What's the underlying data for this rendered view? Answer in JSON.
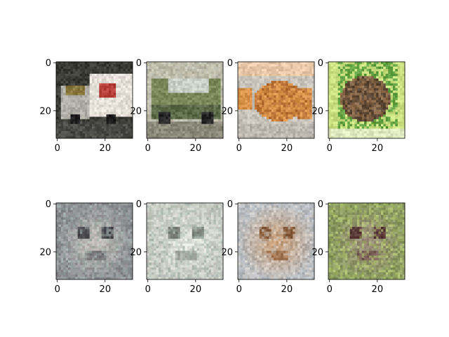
{
  "figure": {
    "background": "#ffffff",
    "grid": false,
    "layout": "2 rows x 4 columns of image panels",
    "x_ticks": [
      0,
      20
    ],
    "y_ticks": [
      0,
      20
    ],
    "panels": [
      {
        "content": "truck",
        "palette": {
          "bg": "#3a3b35",
          "main": "#e4e0d8",
          "accent": "#b8403a",
          "detail": "#8a7a40",
          "ground": "#4a4a46"
        }
      },
      {
        "content": "car",
        "palette": {
          "bg": "#b8b4a0",
          "main": "#7a8a5a",
          "accent": "#5a6a48",
          "detail": "#c8d0c8",
          "ground": "#8a8878"
        }
      },
      {
        "content": "cat",
        "palette": {
          "bg": "#c8c4bc",
          "main": "#d8924a",
          "accent": "#b87034",
          "detail": "#e8c8a8",
          "ground": "#bcb8b0"
        }
      },
      {
        "content": "frog",
        "palette": {
          "bg": "#60a040",
          "main": "#8a6a4a",
          "accent": "#5a4632",
          "detail": "#c8e080",
          "ground": "#e0e8c0"
        }
      },
      {
        "content": "generated",
        "palette": {
          "bg": "#8a8c90",
          "main": "#c8c4c0",
          "accent": "#4a4a50",
          "detail": "#a0b0a8",
          "ground": "#707478"
        }
      },
      {
        "content": "generated",
        "palette": {
          "bg": "#c8ccc4",
          "main": "#e0e4dc",
          "accent": "#7a8078",
          "detail": "#a8b8b0",
          "ground": "#b0b4ac"
        }
      },
      {
        "content": "generated",
        "palette": {
          "bg": "#b8bcc0",
          "main": "#c89a70",
          "accent": "#8a6040",
          "detail": "#d8d0c8",
          "ground": "#a89888"
        }
      },
      {
        "content": "generated",
        "palette": {
          "bg": "#8a9a60",
          "main": "#9a8a7a",
          "accent": "#5a3a38",
          "detail": "#b8d070",
          "ground": "#a0a868"
        }
      }
    ]
  }
}
